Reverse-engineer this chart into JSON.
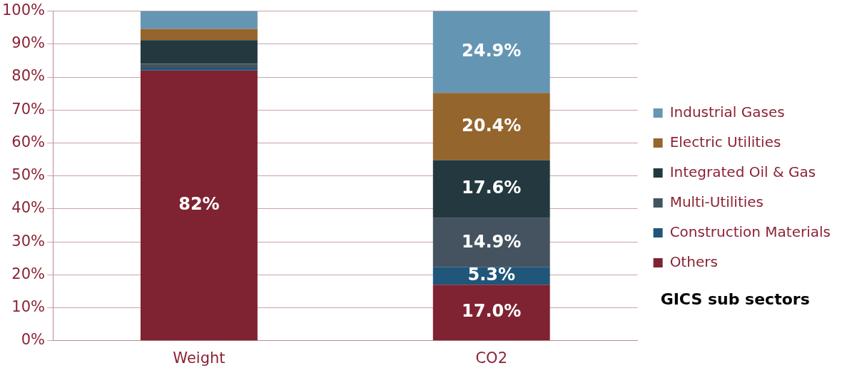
{
  "chart_data": {
    "type": "bar",
    "stacked": true,
    "categories": [
      "Weight",
      "CO2"
    ],
    "series": [
      {
        "name": "Others",
        "color": "#7f2232",
        "values": [
          82,
          17.0
        ],
        "value_labels": [
          "82%",
          "17.0%"
        ]
      },
      {
        "name": "Construction Materials",
        "color": "#1f567a",
        "values": [
          0.8,
          5.3
        ],
        "value_labels": [
          null,
          "5.3%"
        ]
      },
      {
        "name": "Multi-Utilities",
        "color": "#44535f",
        "values": [
          1.2,
          14.9
        ],
        "value_labels": [
          null,
          "14.9%"
        ]
      },
      {
        "name": "Integrated Oil & Gas",
        "color": "#23393f",
        "values": [
          7.2,
          17.6
        ],
        "value_labels": [
          null,
          "17.6%"
        ]
      },
      {
        "name": "Electric Utilities",
        "color": "#94652d",
        "values": [
          3.4,
          20.4
        ],
        "value_labels": [
          null,
          "20.4%"
        ]
      },
      {
        "name": "Industrial Gases",
        "color": "#6496b4",
        "values": [
          5.4,
          24.9
        ],
        "value_labels": [
          null,
          "24.9%"
        ]
      }
    ],
    "ylim": [
      0,
      100
    ],
    "yticks": [
      {
        "value": 0,
        "label": "0%"
      },
      {
        "value": 10,
        "label": "10%"
      },
      {
        "value": 20,
        "label": "20%"
      },
      {
        "value": 30,
        "label": "30%"
      },
      {
        "value": 40,
        "label": "40%"
      },
      {
        "value": 50,
        "label": "50%"
      },
      {
        "value": 60,
        "label": "60%"
      },
      {
        "value": 70,
        "label": "70%"
      },
      {
        "value": 80,
        "label": "80%"
      },
      {
        "value": 90,
        "label": "90%"
      },
      {
        "value": 100,
        "label": "100%"
      }
    ],
    "grid": "y",
    "legend": "right",
    "legend_title": "GICS sub sectors"
  }
}
